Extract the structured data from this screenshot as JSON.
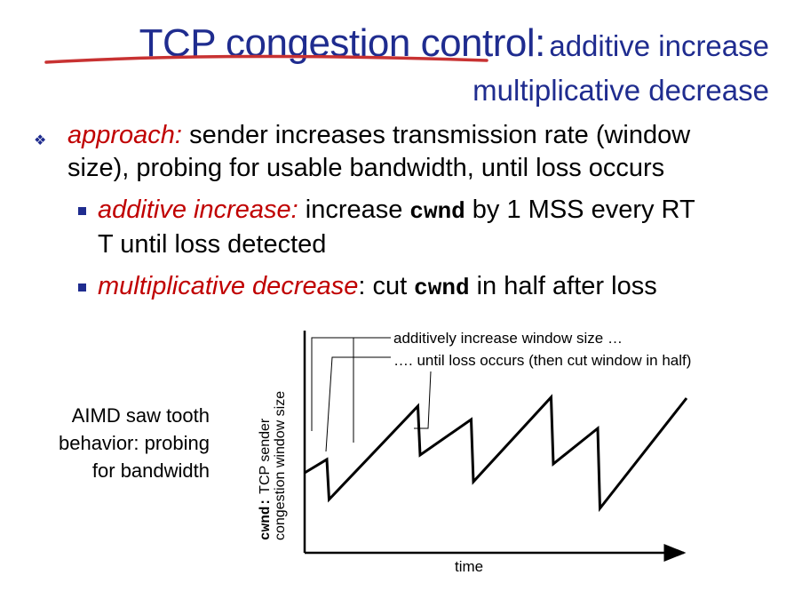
{
  "title": {
    "main": "TCP congestion control",
    "separator": ":",
    "sub_line1": "additive increase",
    "sub_line2": "multiplicative decrease"
  },
  "bullets": {
    "approach": {
      "lead": "approach:",
      "text_part1": "sender increases transmission rate (window",
      "text_part2": "size), probing for usable bandwidth, until loss occurs"
    },
    "additive": {
      "lead": "additive increase:",
      "pre": "increase",
      "code": "cwnd",
      "post_line1": "by 1 MSS every RT",
      "post_line2": "T until loss detected"
    },
    "multiplicative": {
      "lead": "multiplicative decrease",
      "lead_colon": ":",
      "pre": "cut",
      "code": "cwnd",
      "post": "in half after loss"
    }
  },
  "caption": {
    "line1": "AIMD saw tooth",
    "line2": "behavior: probing",
    "line3": "for bandwidth"
  },
  "chart_data": {
    "type": "line",
    "xlabel": "time",
    "ylabel_code": "cwnd:",
    "ylabel_line1": " TCP sender",
    "ylabel_line2": "congestion window size",
    "annotations": {
      "increase": "additively increase window size …",
      "loss": "…. until loss occurs (then cut window in half)"
    },
    "colors": {
      "line": "#000000",
      "title": "#1f2c8f",
      "lead": "#c00000"
    },
    "series": [
      {
        "x": [
          0,
          1,
          1.1,
          5.1,
          5.2,
          7.5,
          7.6,
          11.1,
          11.2,
          13.2,
          13.3,
          17.2
        ],
        "values": [
          9,
          10.5,
          6,
          16.5,
          11,
          15,
          8,
          17.5,
          10,
          14,
          5,
          17.4
        ]
      }
    ]
  }
}
